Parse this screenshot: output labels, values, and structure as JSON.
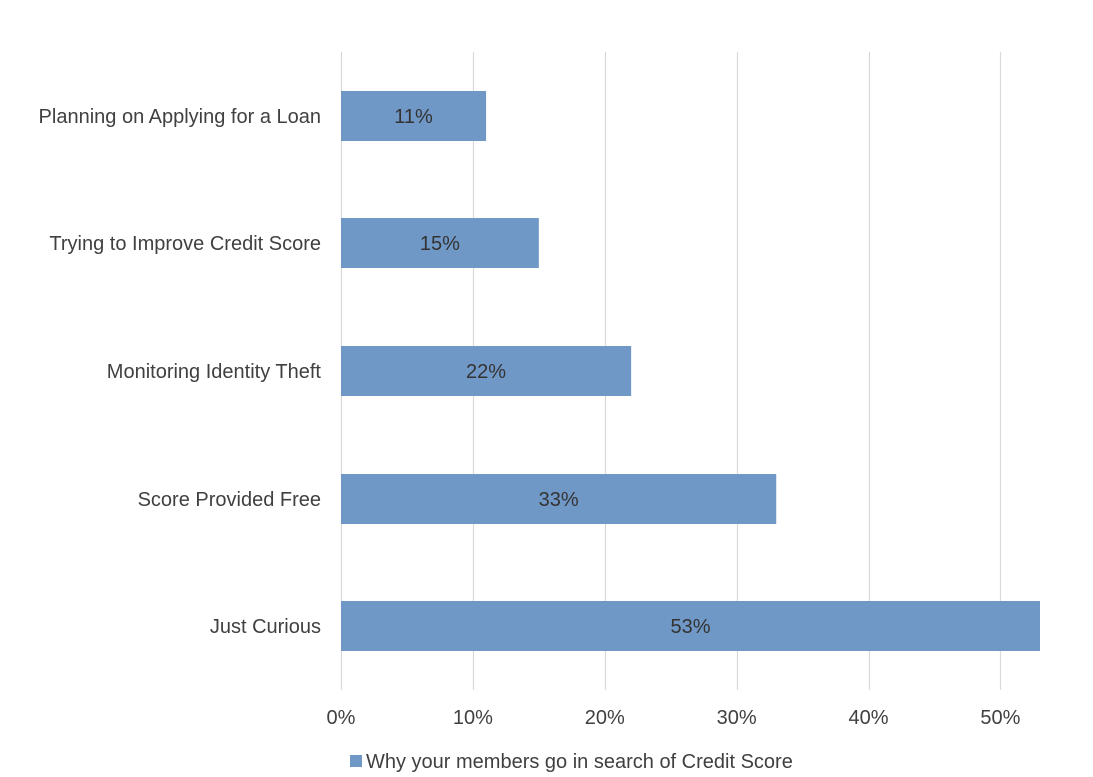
{
  "chart_data": {
    "type": "bar",
    "orientation": "horizontal",
    "categories": [
      "Planning on Applying for a Loan",
      "Trying to Improve Credit Score",
      "Monitoring Identity Theft",
      "Score Provided Free",
      "Just Curious"
    ],
    "series": [
      {
        "name": "Why your members go in search of Credit Score",
        "values": [
          11,
          15,
          22,
          33,
          53
        ],
        "data_labels": [
          "11%",
          "15%",
          "22%",
          "33%",
          "53%"
        ],
        "color": "#7098C6"
      }
    ],
    "x_ticks": [
      {
        "value": 0,
        "label": "0%"
      },
      {
        "value": 10,
        "label": "10%"
      },
      {
        "value": 20,
        "label": "20%"
      },
      {
        "value": 30,
        "label": "30%"
      },
      {
        "value": 40,
        "label": "40%"
      },
      {
        "value": 50,
        "label": "50%"
      }
    ],
    "xlim": [
      0,
      53
    ],
    "grid": "vertical",
    "legend_position": "bottom",
    "colors": {
      "bar": "#7098C6",
      "grid": "#D9D9D9",
      "text": "#404040",
      "label": "#333333"
    }
  }
}
